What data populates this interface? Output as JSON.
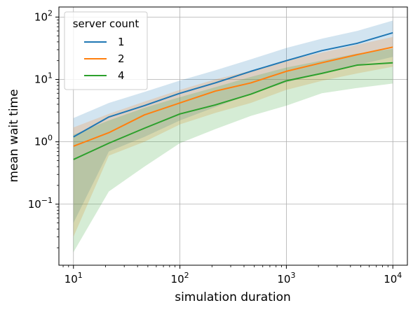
{
  "chart_data": {
    "type": "line",
    "xlabel": "simulation duration",
    "ylabel": "mean wait time",
    "xscale": "log",
    "yscale": "log",
    "xlim": [
      7.3,
      13700
    ],
    "ylim": [
      0.0105,
      145
    ],
    "grid": true,
    "legend": {
      "title": "server count",
      "position": "top-left"
    },
    "x_ticks": [
      {
        "base": "10",
        "exp": "1",
        "value": 10
      },
      {
        "base": "10",
        "exp": "2",
        "value": 100
      },
      {
        "base": "10",
        "exp": "3",
        "value": 1000
      },
      {
        "base": "10",
        "exp": "4",
        "value": 10000
      }
    ],
    "y_ticks": [
      {
        "base": "10",
        "exp": "−1",
        "value": 0.1
      },
      {
        "base": "10",
        "exp": "0",
        "value": 1
      },
      {
        "base": "10",
        "exp": "1",
        "value": 10
      },
      {
        "base": "10",
        "exp": "2",
        "value": 100
      }
    ],
    "x": [
      10,
      21.5,
      46.4,
      100,
      215,
      464,
      1000,
      2154,
      4642,
      10000
    ],
    "series": [
      {
        "name": "1",
        "color": "#1f77b4",
        "values": [
          1.2,
          2.5,
          3.8,
          6.0,
          8.8,
          13.5,
          20.0,
          29.0,
          38.0,
          56.0
        ],
        "lower": [
          0.05,
          0.7,
          1.2,
          2.2,
          3.6,
          5.8,
          9.0,
          12.5,
          17.0,
          23.0
        ],
        "upper": [
          2.4,
          4.2,
          6.3,
          9.6,
          14.0,
          21.0,
          32.0,
          45.0,
          60.0,
          88.0
        ]
      },
      {
        "name": "2",
        "color": "#ff7f0e",
        "values": [
          0.85,
          1.4,
          2.7,
          4.2,
          6.5,
          8.8,
          13.5,
          18.5,
          25.0,
          33.0
        ],
        "lower": [
          0.03,
          0.6,
          1.0,
          1.9,
          2.9,
          4.2,
          6.8,
          9.5,
          12.5,
          16.0
        ],
        "upper": [
          1.7,
          2.8,
          4.4,
          6.8,
          10.0,
          13.8,
          20.0,
          27.0,
          36.0,
          48.0
        ]
      },
      {
        "name": "4",
        "color": "#2ca02c",
        "values": [
          0.52,
          0.95,
          1.65,
          2.8,
          3.9,
          5.8,
          9.5,
          12.5,
          17.0,
          18.5
        ],
        "lower": [
          0.017,
          0.16,
          0.4,
          0.95,
          1.6,
          2.6,
          3.8,
          6.0,
          7.3,
          8.6
        ],
        "upper": [
          1.3,
          2.2,
          3.5,
          5.2,
          7.5,
          11.0,
          15.5,
          20.0,
          26.0,
          31.0
        ]
      }
    ]
  }
}
